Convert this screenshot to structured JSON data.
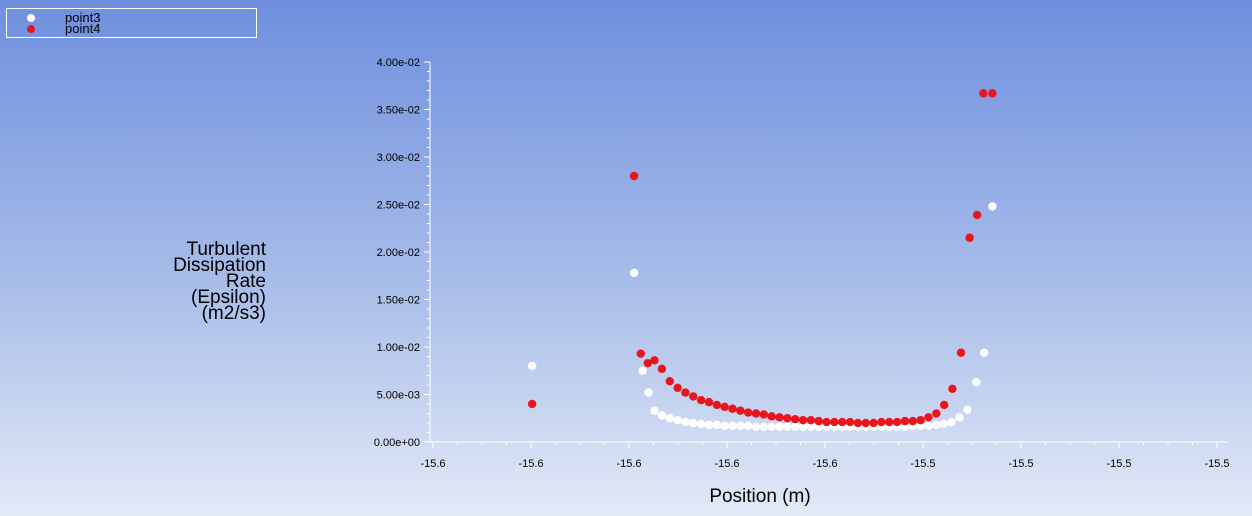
{
  "legend": {
    "items": [
      {
        "label": "point3",
        "color": "#ffffff"
      },
      {
        "label": "point4",
        "color": "#e8161c"
      }
    ]
  },
  "chart_data": {
    "type": "scatter",
    "xlabel": "Position (m)",
    "ylabel_lines": [
      "Turbulent",
      "Dissipation",
      "Rate",
      "(Epsilon)",
      "(m2/s3)"
    ],
    "x_tick_labels": [
      "-15.6",
      "-15.6",
      "-15.6",
      "-15.6",
      "-15.6",
      "-15.5",
      "-15.5",
      "-15.5",
      "-15.5"
    ],
    "y_tick_labels": [
      "0.00e+00",
      "5.00e-03",
      "1.00e-02",
      "1.50e-02",
      "2.00e-02",
      "2.50e-02",
      "3.00e-02",
      "3.50e-02",
      "4.00e-02"
    ],
    "ylim": [
      0,
      0.04
    ],
    "xlim": [
      -15.6,
      -15.5
    ],
    "grid": false,
    "legend_position": "top-left",
    "series": [
      {
        "name": "point3",
        "color": "#ffffff",
        "x": [
          -15.58735,
          -15.57435,
          -15.57325,
          -15.5725,
          -15.57175,
          -15.5708,
          -15.5698,
          -15.5688,
          -15.5678,
          -15.5668,
          -15.5658,
          -15.5648,
          -15.5638,
          -15.5628,
          -15.5618,
          -15.5608,
          -15.5598,
          -15.5588,
          -15.5578,
          -15.5568,
          -15.5558,
          -15.5548,
          -15.5538,
          -15.5528,
          -15.5518,
          -15.5508,
          -15.5498,
          -15.5488,
          -15.5478,
          -15.5468,
          -15.5458,
          -15.5448,
          -15.5438,
          -15.5428,
          -15.5418,
          -15.5408,
          -15.5398,
          -15.5388,
          -15.5378,
          -15.5368,
          -15.5358,
          -15.53485,
          -15.53385,
          -15.53285,
          -15.53185,
          -15.5307,
          -15.5297,
          -15.52865
        ],
        "y": [
          0.008,
          0.0178,
          0.0075,
          0.0052,
          0.0033,
          0.0028,
          0.0025,
          0.0023,
          0.0021,
          0.002,
          0.0019,
          0.0018,
          0.0018,
          0.0017,
          0.0017,
          0.0017,
          0.0017,
          0.0016,
          0.0016,
          0.0016,
          0.0016,
          0.0016,
          0.0016,
          0.0016,
          0.0016,
          0.0016,
          0.0016,
          0.0016,
          0.0016,
          0.0016,
          0.0016,
          0.0016,
          0.0016,
          0.0016,
          0.0016,
          0.0016,
          0.0016,
          0.0017,
          0.0017,
          0.0017,
          0.0018,
          0.0019,
          0.0021,
          0.0026,
          0.0034,
          0.0063,
          0.0094,
          0.0248
        ]
      },
      {
        "name": "point4",
        "color": "#e8161c",
        "x": [
          -15.58735,
          -15.57435,
          -15.5735,
          -15.5726,
          -15.57175,
          -15.5708,
          -15.5698,
          -15.5688,
          -15.5678,
          -15.5668,
          -15.5658,
          -15.5648,
          -15.5638,
          -15.5628,
          -15.5618,
          -15.5608,
          -15.5598,
          -15.5588,
          -15.5578,
          -15.5568,
          -15.5558,
          -15.5548,
          -15.5538,
          -15.5528,
          -15.5518,
          -15.5508,
          -15.5498,
          -15.5488,
          -15.5478,
          -15.5468,
          -15.5458,
          -15.5448,
          -15.5438,
          -15.5428,
          -15.5418,
          -15.5408,
          -15.5398,
          -15.5388,
          -15.5378,
          -15.5368,
          -15.5358,
          -15.5348,
          -15.53375,
          -15.53265,
          -15.53155,
          -15.5306,
          -15.5298,
          -15.52865
        ],
        "y": [
          0.004,
          0.028,
          0.0093,
          0.0083,
          0.0086,
          0.0077,
          0.0064,
          0.0057,
          0.0052,
          0.0048,
          0.0044,
          0.0042,
          0.0039,
          0.0037,
          0.0035,
          0.0033,
          0.0031,
          0.003,
          0.0029,
          0.0027,
          0.0026,
          0.0025,
          0.0024,
          0.0023,
          0.0023,
          0.0022,
          0.0021,
          0.0021,
          0.0021,
          0.0021,
          0.002,
          0.002,
          0.002,
          0.0021,
          0.0021,
          0.0021,
          0.0022,
          0.0022,
          0.0023,
          0.0026,
          0.003,
          0.0039,
          0.0056,
          0.0094,
          0.0215,
          0.0239,
          0.0367,
          0.0367
        ]
      }
    ]
  }
}
